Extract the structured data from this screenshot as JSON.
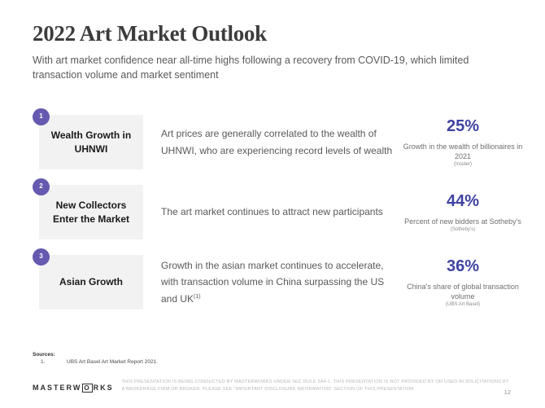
{
  "slide": {
    "title": "2022 Art Market Outlook",
    "subtitle": "With art market confidence near all-time highs following a recovery from COVID-19, which limited transaction volume and market sentiment"
  },
  "colors": {
    "accent_purple": "#655AB0",
    "stat_indigo": "#3F43A1",
    "label_box_gray": "#F2F2F2"
  },
  "rows": [
    {
      "number": "1",
      "label": "Wealth Growth in UHNWI",
      "description": "Art prices are generally correlated to the wealth of UHNWI, who are experiencing record levels of wealth",
      "description_superscript": "",
      "stat_value": "25%",
      "stat_caption": "Growth in the wealth of billionaires in 2021",
      "stat_source": "(Insider)"
    },
    {
      "number": "2",
      "label": "New Collectors Enter the Market",
      "description": "The art market continues to attract new participants",
      "description_superscript": "",
      "stat_value": "44%",
      "stat_caption": "Percent of new bidders at Sotheby's",
      "stat_source": "(Sotheby's)"
    },
    {
      "number": "3",
      "label": "Asian Growth",
      "description": "Growth in the asian market continues to accelerate, with transaction volume in China surpassing the US and UK",
      "description_superscript": "(1)",
      "stat_value": "36%",
      "stat_caption": "China's share of global transaction volume",
      "stat_source": "(UBS Art Basel)"
    }
  ],
  "footer": {
    "sources_label": "Sources:",
    "sources": [
      {
        "index": "1.",
        "text": "UBS Art Basel Art Market Report 2021."
      }
    ],
    "logo_prefix": "MASTERW",
    "logo_o": "O",
    "logo_suffix": "RKS",
    "disclaimer": "THIS PRESENTATION IS BEING CONDUCTED BY MASTERWORKS UNDER SEC RULE 3A4-1. THIS PRESENTATION IS NOT PROVIDED BY OR USED IN SOLICITATIONS BY A BROKERAGE FIRM OR BROKER. PLEASE SEE “IMPORTANT DISCLOSURE INFORMATION” SECTION OF THIS PRESENTATION",
    "page_number": "12"
  }
}
